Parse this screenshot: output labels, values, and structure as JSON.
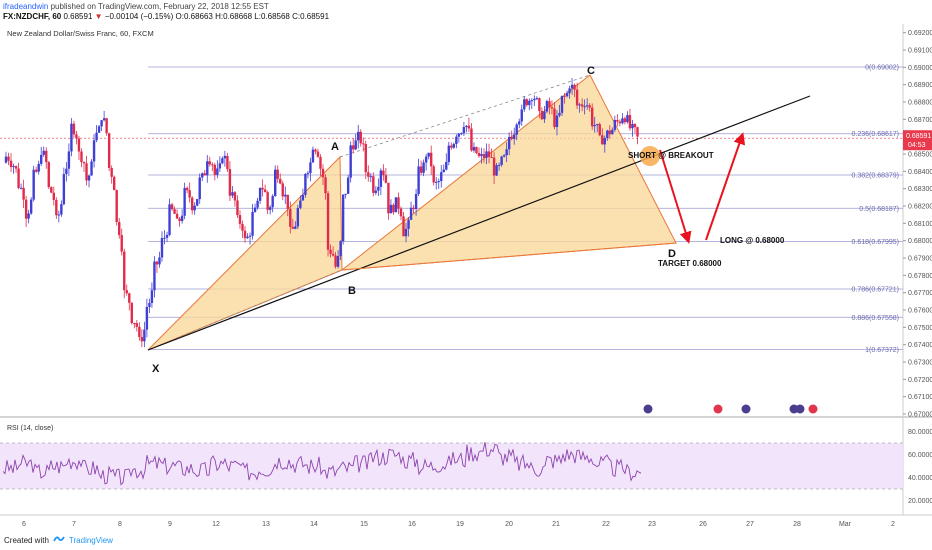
{
  "header": {
    "publisher": "ifradeandwin",
    "published_text": "published on TradingView.com, February 22, 2018 12:55 EST",
    "symbol": "FX:NZDCHF, 60",
    "last": "0.68591",
    "change_arrow": "▼",
    "change": "−0.00104 (−0.15%)",
    "open": "O:0.68663",
    "high": "H:0.68668",
    "low": "L:0.68568",
    "close": "C:0.68591"
  },
  "chart_title": "New Zealand Dollar/Swiss Franc, 60, FXCM",
  "price_badge": {
    "price": "0.68591",
    "countdown": "04:53"
  },
  "price_axis": [
    "0.69200",
    "0.69100",
    "0.69000",
    "0.68900",
    "0.68800",
    "0.68700",
    "0.68600",
    "0.68500",
    "0.68400",
    "0.68300",
    "0.68200",
    "0.68100",
    "0.68000",
    "0.67900",
    "0.67800",
    "0.67700",
    "0.67600",
    "0.67500",
    "0.67400",
    "0.67300",
    "0.67200",
    "0.67100",
    "0.67000"
  ],
  "fib_levels": [
    {
      "label": "0(0.69002)",
      "value": 0.69002
    },
    {
      "label": "0.236(0.68617)",
      "value": 0.68617
    },
    {
      "label": "0.382(0.68379)",
      "value": 0.68379
    },
    {
      "label": "0.5(0.68187)",
      "value": 0.68187
    },
    {
      "label": "0.618(0.67995)",
      "value": 0.67995
    },
    {
      "label": "0.786(0.67721)",
      "value": 0.67721
    },
    {
      "label": "0.886(0.67558)",
      "value": 0.67558
    },
    {
      "label": "1(0.67372)",
      "value": 0.67372
    }
  ],
  "pattern_points": {
    "x": "X",
    "a": "A",
    "b": "B",
    "c": "C",
    "d": "D"
  },
  "annotations": {
    "short": "SHORT @ BREAKOUT",
    "long": "LONG @ 0.68000",
    "target": "TARGET 0.68000"
  },
  "rsi": {
    "title": "RSI (14, close)",
    "axis": [
      "80.0000",
      "60.0000",
      "40.0000",
      "20.0000"
    ],
    "levels": [
      70,
      30
    ]
  },
  "time_axis": [
    "6",
    "7",
    "8",
    "9",
    "12",
    "13",
    "14",
    "15",
    "16",
    "19",
    "20",
    "21",
    "22",
    "23",
    "26",
    "27",
    "28",
    "Mar",
    "2"
  ],
  "footer": {
    "created_with": "Created with",
    "brand": "TradingView"
  },
  "colors": {
    "up": "#3f3fd6",
    "down": "#e02b4a",
    "pattern_fill": "#fbd796",
    "pattern_edge": "#e8783a",
    "fib": "#9b9bd0",
    "arrow": "#e8131f",
    "rsi_line": "#8e44ad",
    "rsi_band": "#f1e4fb"
  },
  "chart_data": [
    {
      "type": "candlestick",
      "title": "New Zealand Dollar/Swiss Franc, 60, FXCM",
      "ylim": [
        0.67,
        0.6925
      ],
      "x_ticks": [
        "6",
        "7",
        "8",
        "9",
        "12",
        "13",
        "14",
        "15",
        "16",
        "19",
        "20",
        "21",
        "22",
        "23",
        "26",
        "27",
        "28",
        "Mar",
        "2"
      ],
      "key_points": [
        {
          "label": "X",
          "price": 0.67372
        },
        {
          "label": "A",
          "price": 0.686
        },
        {
          "label": "B",
          "price": 0.6785
        },
        {
          "label": "C",
          "price": 0.69002
        },
        {
          "label": "D",
          "price": 0.68
        }
      ],
      "close_path": [
        0.6845,
        0.6832,
        0.6815,
        0.6838,
        0.6852,
        0.683,
        0.6812,
        0.684,
        0.6866,
        0.685,
        0.6835,
        0.686,
        0.6872,
        0.6842,
        0.681,
        0.677,
        0.6755,
        0.6742,
        0.6762,
        0.6785,
        0.68,
        0.6818,
        0.681,
        0.6828,
        0.682,
        0.6835,
        0.6848,
        0.6838,
        0.685,
        0.6828,
        0.6812,
        0.68,
        0.6815,
        0.6832,
        0.6818,
        0.684,
        0.6828,
        0.6805,
        0.6818,
        0.684,
        0.6855,
        0.6842,
        0.6795,
        0.6785,
        0.6825,
        0.6855,
        0.686,
        0.684,
        0.683,
        0.6842,
        0.6818,
        0.6822,
        0.6805,
        0.6818,
        0.684,
        0.685,
        0.6832,
        0.6838,
        0.6855,
        0.6862,
        0.6868,
        0.6852,
        0.6848,
        0.685,
        0.684,
        0.6846,
        0.686,
        0.687,
        0.688,
        0.6884,
        0.6872,
        0.6878,
        0.6868,
        0.6882,
        0.689,
        0.6878,
        0.688,
        0.6868,
        0.6858,
        0.6862,
        0.6868,
        0.6872,
        0.6865,
        0.6859
      ],
      "rsi_ylim": [
        10,
        90
      ]
    }
  ]
}
